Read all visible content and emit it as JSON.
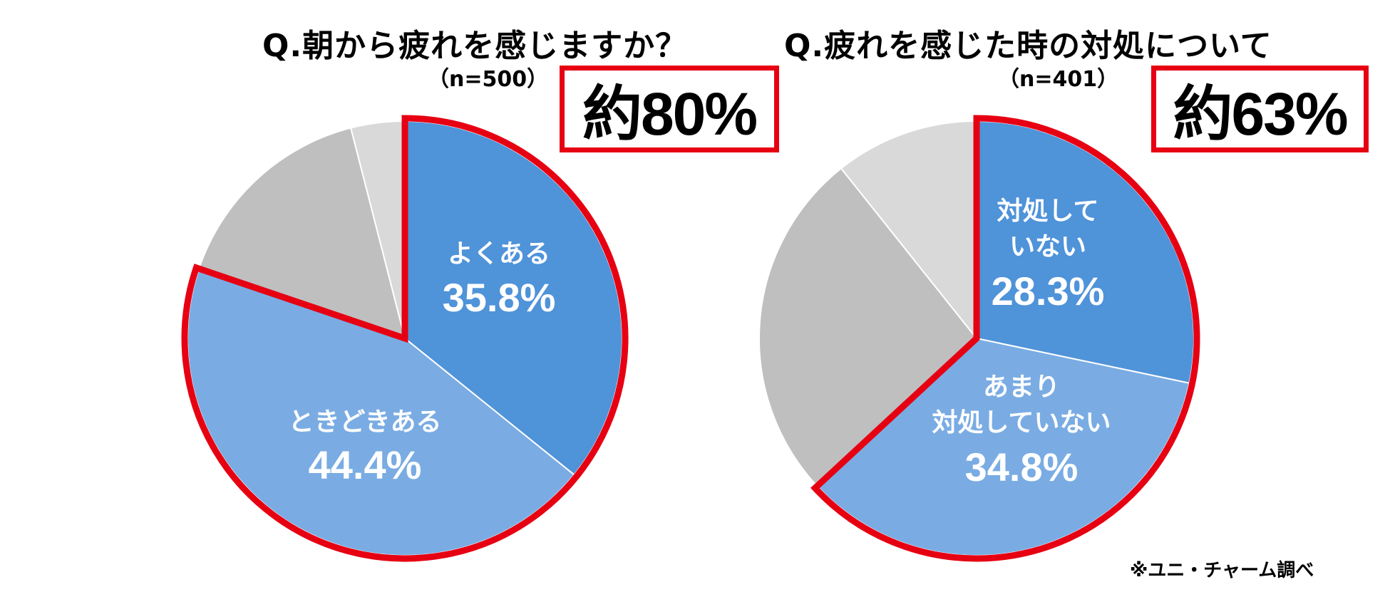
{
  "chart_data": [
    {
      "type": "pie",
      "title": "Q.朝から疲れを感じますか？",
      "subtitle": "（n=500）",
      "callout": "約80%",
      "slices": [
        {
          "label": "よくある",
          "value": 35.8,
          "value_label": "35.8%",
          "color": "#4f93d9",
          "highlighted": true
        },
        {
          "label": "ときどきある",
          "value": 44.4,
          "value_label": "44.4%",
          "color": "#7aace3",
          "highlighted": true
        },
        {
          "label": "",
          "value": 15.8,
          "value_label": "",
          "color": "#bfbfbf",
          "highlighted": false
        },
        {
          "label": "",
          "value": 4.0,
          "value_label": "",
          "color": "#d9d9d9",
          "highlighted": false
        }
      ]
    },
    {
      "type": "pie",
      "title": "Q.疲れを感じた時の対処について",
      "subtitle": "（n=401）",
      "callout": "約63%",
      "slices": [
        {
          "label": "対処して\nいない",
          "value": 28.3,
          "value_label": "28.3%",
          "color": "#4f93d9",
          "highlighted": true
        },
        {
          "label": "あまり\n対処していない",
          "value": 34.8,
          "value_label": "34.8%",
          "color": "#7aace3",
          "highlighted": true
        },
        {
          "label": "",
          "value": 26.2,
          "value_label": "",
          "color": "#bfbfbf",
          "highlighted": false
        },
        {
          "label": "",
          "value": 10.7,
          "value_label": "",
          "color": "#d9d9d9",
          "highlighted": false
        }
      ]
    }
  ],
  "source": "※ユニ・チャーム調べ",
  "highlight_color": "#e60012"
}
